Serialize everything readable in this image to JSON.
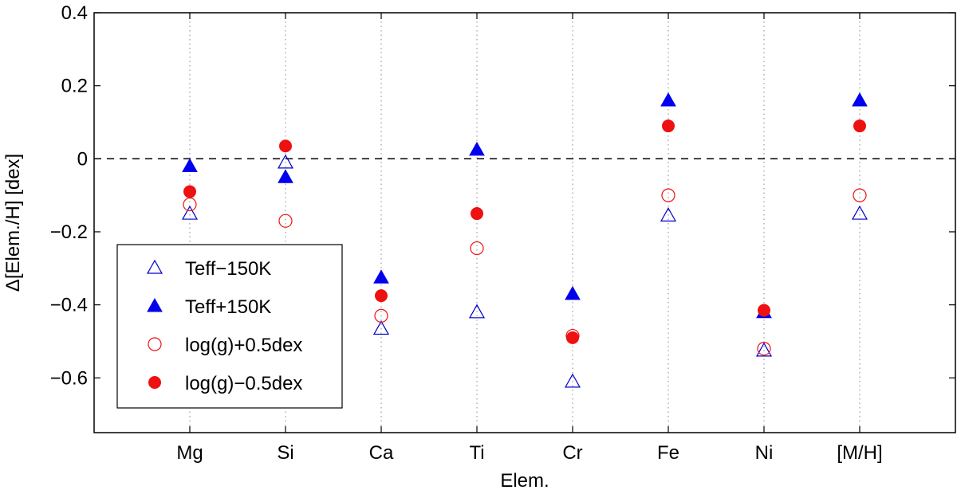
{
  "chart_data": {
    "type": "scatter",
    "title": "",
    "xlabel": "Elem.",
    "ylabel": "Δ[Elem./H] [dex]",
    "categories": [
      "Mg",
      "Si",
      "Ca",
      "Ti",
      "Cr",
      "Fe",
      "Ni",
      "[M/H]"
    ],
    "xlim": [
      0,
      9
    ],
    "ylim": [
      -0.75,
      0.4
    ],
    "yticks": [
      0.4,
      0.2,
      0,
      -0.2,
      -0.4,
      -0.6
    ],
    "ytick_labels": [
      "0.4",
      "0.2",
      "0",
      "−0.2",
      "−0.4",
      "−0.6"
    ],
    "reference_line": 0,
    "grid": "vertical dotted lines at categories",
    "legend_position": "lower-left",
    "series": [
      {
        "name": "Teff−150K",
        "marker": "triangle-open",
        "color": "#0000cc",
        "values": [
          -0.15,
          -0.01,
          -0.465,
          -0.42,
          -0.61,
          -0.155,
          -0.525,
          -0.15
        ]
      },
      {
        "name": "Teff+150K",
        "marker": "triangle-filled",
        "color": "#0000ee",
        "values": [
          -0.02,
          -0.05,
          -0.325,
          0.025,
          -0.37,
          0.16,
          -0.42,
          0.16
        ]
      },
      {
        "name": "log(g)+0.5dex",
        "marker": "circle-open",
        "color": "#ee1111",
        "values": [
          -0.125,
          -0.17,
          -0.43,
          -0.245,
          -0.485,
          -0.1,
          -0.52,
          -0.1
        ]
      },
      {
        "name": "log(g)−0.5dex",
        "marker": "circle-filled",
        "color": "#ee1111",
        "values": [
          -0.09,
          0.035,
          -0.375,
          -0.15,
          -0.49,
          0.09,
          -0.415,
          0.09
        ]
      }
    ]
  }
}
